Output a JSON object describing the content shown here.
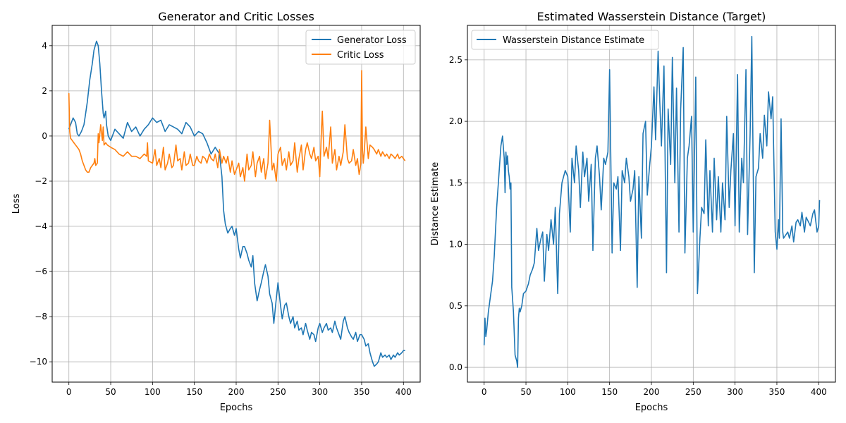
{
  "chart_data": [
    {
      "type": "line",
      "title": "Generator and Critic Losses",
      "xlabel": "Epochs",
      "ylabel": "Loss",
      "xlim": [
        -20,
        420
      ],
      "ylim": [
        -10.9,
        4.9
      ],
      "xticks": [
        0,
        50,
        100,
        150,
        200,
        250,
        300,
        350,
        400
      ],
      "xtick_labels": [
        "0",
        "50",
        "100",
        "150",
        "200",
        "250",
        "300",
        "350",
        "400"
      ],
      "yticks": [
        -10,
        -8,
        -6,
        -4,
        -2,
        0,
        2,
        4
      ],
      "ytick_labels": [
        "−10",
        "−8",
        "−6",
        "−4",
        "−2",
        "0",
        "2",
        "4"
      ],
      "grid": true,
      "legend_position": "top-right",
      "series": [
        {
          "name": "Generator Loss",
          "color": "#1f77b4",
          "x": [
            0,
            3,
            5,
            8,
            10,
            12,
            15,
            18,
            20,
            22,
            25,
            28,
            30,
            33,
            35,
            37,
            39,
            40,
            41,
            42,
            44,
            45,
            47,
            50,
            55,
            60,
            65,
            70,
            75,
            80,
            85,
            90,
            95,
            100,
            105,
            110,
            115,
            120,
            125,
            130,
            135,
            140,
            145,
            150,
            155,
            160,
            165,
            170,
            175,
            180,
            183,
            185,
            187,
            190,
            193,
            195,
            198,
            200,
            203,
            205,
            208,
            210,
            213,
            215,
            218,
            220,
            222,
            225,
            228,
            230,
            233,
            235,
            238,
            240,
            243,
            245,
            248,
            250,
            253,
            255,
            258,
            260,
            263,
            265,
            268,
            270,
            273,
            275,
            278,
            280,
            283,
            285,
            288,
            290,
            293,
            295,
            298,
            300,
            303,
            305,
            308,
            310,
            313,
            315,
            318,
            320,
            323,
            325,
            328,
            330,
            333,
            335,
            338,
            340,
            343,
            345,
            348,
            350,
            353,
            355,
            358,
            360,
            363,
            365,
            368,
            370,
            373,
            375,
            378,
            380,
            383,
            385,
            388,
            390,
            393,
            395,
            398,
            400,
            402
          ],
          "y": [
            0.3,
            0.6,
            0.8,
            0.6,
            0.1,
            0.0,
            0.2,
            0.5,
            1.0,
            1.5,
            2.5,
            3.2,
            3.8,
            4.2,
            4.0,
            3.2,
            2.0,
            1.5,
            1.0,
            0.8,
            1.1,
            0.5,
            0.0,
            -0.2,
            0.3,
            0.1,
            -0.1,
            0.6,
            0.2,
            0.4,
            0.0,
            0.3,
            0.5,
            0.8,
            0.6,
            0.7,
            0.2,
            0.5,
            0.4,
            0.3,
            0.1,
            0.6,
            0.4,
            0.0,
            0.2,
            0.1,
            -0.3,
            -0.8,
            -0.5,
            -0.8,
            -1.8,
            -3.3,
            -3.9,
            -4.3,
            -4.1,
            -4.0,
            -4.4,
            -4.1,
            -5.0,
            -5.4,
            -4.9,
            -4.9,
            -5.2,
            -5.5,
            -5.8,
            -5.3,
            -6.5,
            -7.3,
            -6.8,
            -6.5,
            -6.0,
            -5.7,
            -6.2,
            -7.0,
            -7.4,
            -8.3,
            -7.2,
            -6.5,
            -7.5,
            -8.1,
            -7.5,
            -7.4,
            -8.0,
            -8.3,
            -8.0,
            -8.5,
            -8.2,
            -8.6,
            -8.5,
            -8.8,
            -8.3,
            -8.6,
            -9.0,
            -8.7,
            -8.8,
            -9.1,
            -8.5,
            -8.3,
            -8.7,
            -8.5,
            -8.3,
            -8.6,
            -8.5,
            -8.7,
            -8.2,
            -8.5,
            -8.8,
            -9.0,
            -8.2,
            -8.0,
            -8.5,
            -8.7,
            -8.9,
            -9.0,
            -8.7,
            -9.1,
            -8.8,
            -8.8,
            -9.0,
            -9.3,
            -9.2,
            -9.6,
            -10.0,
            -10.2,
            -10.1,
            -10.0,
            -9.6,
            -9.8,
            -9.7,
            -9.8,
            -9.7,
            -9.9,
            -9.7,
            -9.8,
            -9.6,
            -9.7,
            -9.6,
            -9.5,
            -9.5
          ]
        },
        {
          "name": "Critic Loss",
          "color": "#ff7f0e",
          "x": [
            0,
            1,
            2,
            4,
            6,
            8,
            10,
            12,
            14,
            16,
            18,
            20,
            22,
            24,
            26,
            28,
            30,
            31,
            32,
            34,
            35,
            36,
            38,
            40,
            41,
            42,
            44,
            46,
            50,
            55,
            60,
            65,
            70,
            75,
            80,
            85,
            90,
            93,
            94,
            95,
            100,
            103,
            105,
            108,
            110,
            113,
            115,
            118,
            120,
            123,
            125,
            128,
            130,
            133,
            135,
            138,
            140,
            143,
            145,
            148,
            150,
            153,
            155,
            158,
            160,
            163,
            165,
            168,
            170,
            173,
            175,
            178,
            180,
            183,
            185,
            188,
            190,
            193,
            195,
            198,
            200,
            203,
            205,
            208,
            210,
            213,
            215,
            218,
            220,
            223,
            225,
            228,
            230,
            233,
            235,
            238,
            240,
            243,
            245,
            248,
            250,
            253,
            255,
            258,
            260,
            263,
            265,
            268,
            270,
            273,
            275,
            278,
            280,
            283,
            285,
            288,
            290,
            293,
            295,
            298,
            300,
            302,
            303,
            305,
            308,
            310,
            313,
            315,
            318,
            320,
            323,
            325,
            328,
            330,
            333,
            335,
            338,
            340,
            343,
            345,
            347,
            348,
            349,
            350,
            351,
            352,
            353,
            355,
            358,
            360,
            363,
            365,
            368,
            370,
            373,
            375,
            378,
            380,
            383,
            385,
            388,
            390,
            393,
            395,
            398,
            400,
            402
          ],
          "y": [
            1.9,
            0.2,
            -0.1,
            -0.2,
            -0.3,
            -0.4,
            -0.5,
            -0.6,
            -0.8,
            -1.1,
            -1.3,
            -1.5,
            -1.6,
            -1.6,
            -1.4,
            -1.3,
            -1.2,
            -1.0,
            -1.3,
            -1.2,
            0.1,
            -0.3,
            0.5,
            -0.2,
            0.4,
            -0.4,
            -0.3,
            -0.4,
            -0.5,
            -0.6,
            -0.8,
            -0.9,
            -0.7,
            -0.9,
            -0.9,
            -1.0,
            -0.8,
            -0.9,
            -0.3,
            -1.1,
            -1.2,
            -0.6,
            -1.3,
            -1.0,
            -1.4,
            -0.5,
            -1.5,
            -1.2,
            -0.8,
            -1.4,
            -1.3,
            -0.4,
            -1.1,
            -1.0,
            -1.5,
            -0.7,
            -1.3,
            -1.2,
            -0.8,
            -1.3,
            -1.3,
            -0.9,
            -1.1,
            -1.2,
            -0.9,
            -1.0,
            -1.2,
            -0.8,
            -1.0,
            -1.1,
            -0.8,
            -1.4,
            -0.6,
            -1.2,
            -0.9,
            -1.2,
            -0.9,
            -1.6,
            -1.1,
            -1.7,
            -1.5,
            -1.2,
            -1.8,
            -1.4,
            -2.0,
            -0.8,
            -1.5,
            -1.3,
            -0.7,
            -1.8,
            -1.2,
            -0.9,
            -1.6,
            -1.0,
            -1.9,
            -1.2,
            0.7,
            -1.5,
            -1.2,
            -2.0,
            -0.8,
            -0.5,
            -1.3,
            -1.0,
            -1.5,
            -0.7,
            -1.3,
            -1.1,
            -0.3,
            -1.6,
            -1.0,
            -0.4,
            -1.5,
            -0.6,
            -0.3,
            -0.8,
            -1.0,
            -0.5,
            -1.1,
            -0.9,
            -1.8,
            0.3,
            1.1,
            -0.9,
            -0.5,
            -1.0,
            0.4,
            -1.2,
            -0.6,
            -1.5,
            -0.9,
            -1.3,
            -0.7,
            0.5,
            -1.0,
            -1.2,
            -1.1,
            -0.6,
            -1.3,
            -1.0,
            -1.7,
            -1.5,
            -1.2,
            2.9,
            -0.5,
            -1.2,
            -0.8,
            0.4,
            -1.0,
            -0.4,
            -0.5,
            -0.6,
            -0.8,
            -0.6,
            -0.9,
            -0.7,
            -0.9,
            -0.8,
            -1.0,
            -0.8,
            -0.9,
            -1.0,
            -0.8,
            -1.0,
            -0.9,
            -1.0,
            -1.1
          ]
        }
      ]
    },
    {
      "type": "line",
      "title": "Estimated Wasserstein Distance (Target)",
      "xlabel": "Epochs",
      "ylabel": "Distance Estimate",
      "xlim": [
        -20,
        420
      ],
      "ylim": [
        -0.12,
        2.78
      ],
      "xticks": [
        0,
        50,
        100,
        150,
        200,
        250,
        300,
        350,
        400
      ],
      "xtick_labels": [
        "0",
        "50",
        "100",
        "150",
        "200",
        "250",
        "300",
        "350",
        "400"
      ],
      "yticks": [
        0.0,
        0.5,
        1.0,
        1.5,
        2.0,
        2.5
      ],
      "ytick_labels": [
        "0.0",
        "0.5",
        "1.0",
        "1.5",
        "2.0",
        "2.5"
      ],
      "grid": true,
      "legend_position": "top-left",
      "series": [
        {
          "name": "Wasserstein Distance Estimate",
          "color": "#1f77b4",
          "x": [
            0,
            1,
            2,
            3,
            5,
            8,
            10,
            12,
            15,
            18,
            20,
            22,
            24,
            25,
            26,
            27,
            28,
            29,
            30,
            31,
            32,
            33,
            35,
            37,
            39,
            40,
            41,
            42,
            43,
            45,
            47,
            50,
            53,
            55,
            58,
            60,
            63,
            65,
            68,
            70,
            72,
            75,
            77,
            80,
            83,
            85,
            88,
            90,
            93,
            95,
            97,
            100,
            103,
            105,
            108,
            110,
            113,
            115,
            118,
            120,
            123,
            125,
            128,
            130,
            133,
            135,
            138,
            140,
            143,
            145,
            148,
            150,
            153,
            155,
            158,
            160,
            163,
            165,
            168,
            170,
            173,
            175,
            178,
            180,
            183,
            185,
            188,
            190,
            193,
            195,
            198,
            200,
            203,
            205,
            208,
            210,
            212,
            215,
            218,
            220,
            223,
            225,
            228,
            230,
            233,
            235,
            238,
            240,
            243,
            245,
            248,
            250,
            253,
            255,
            258,
            260,
            263,
            265,
            268,
            270,
            273,
            275,
            278,
            280,
            283,
            285,
            288,
            290,
            293,
            295,
            298,
            300,
            303,
            305,
            308,
            310,
            313,
            315,
            318,
            320,
            323,
            325,
            328,
            330,
            333,
            335,
            338,
            340,
            343,
            345,
            348,
            350,
            352,
            353,
            355,
            357,
            358,
            360,
            363,
            365,
            368,
            370,
            373,
            375,
            378,
            380,
            383,
            385,
            388,
            390,
            393,
            395,
            398,
            400,
            401
          ],
          "y": [
            0.18,
            0.4,
            0.25,
            0.3,
            0.45,
            0.6,
            0.7,
            0.9,
            1.3,
            1.6,
            1.8,
            1.88,
            1.7,
            1.42,
            1.75,
            1.65,
            1.72,
            1.6,
            1.55,
            1.45,
            1.5,
            0.65,
            0.45,
            0.1,
            0.05,
            0.0,
            0.4,
            0.48,
            0.45,
            0.5,
            0.6,
            0.62,
            0.68,
            0.75,
            0.8,
            0.85,
            1.13,
            0.95,
            1.05,
            1.1,
            0.7,
            1.08,
            0.95,
            1.2,
            1.0,
            1.3,
            0.6,
            1.25,
            1.5,
            1.55,
            1.6,
            1.55,
            1.1,
            1.7,
            1.5,
            1.8,
            1.6,
            1.3,
            1.75,
            1.55,
            1.7,
            1.35,
            1.65,
            0.95,
            1.7,
            1.8,
            1.55,
            1.28,
            1.7,
            1.65,
            1.75,
            2.42,
            0.93,
            1.5,
            1.45,
            1.55,
            0.95,
            1.6,
            1.5,
            1.7,
            1.55,
            1.35,
            1.45,
            1.6,
            0.65,
            1.55,
            1.05,
            1.9,
            2.0,
            1.4,
            1.65,
            1.8,
            2.28,
            1.85,
            2.57,
            2.15,
            1.8,
            2.45,
            0.77,
            2.1,
            1.65,
            2.52,
            1.5,
            2.27,
            1.1,
            2.1,
            2.6,
            0.93,
            1.7,
            1.8,
            2.04,
            1.1,
            2.36,
            0.6,
            1.05,
            1.3,
            1.25,
            1.85,
            1.15,
            1.6,
            1.1,
            1.7,
            1.2,
            1.55,
            1.1,
            1.5,
            1.2,
            2.04,
            1.3,
            1.6,
            1.9,
            1.15,
            2.38,
            1.1,
            1.7,
            1.5,
            2.42,
            1.08,
            1.9,
            2.69,
            0.77,
            1.55,
            1.62,
            1.9,
            1.7,
            2.05,
            1.8,
            2.24,
            2.02,
            2.2,
            1.1,
            0.96,
            1.2,
            1.05,
            2.02,
            1.1,
            1.05,
            1.07,
            1.1,
            1.05,
            1.15,
            1.02,
            1.18,
            1.2,
            1.15,
            1.26,
            1.1,
            1.22,
            1.18,
            1.15,
            1.25,
            1.28,
            1.1,
            1.15,
            1.36
          ]
        }
      ]
    }
  ]
}
